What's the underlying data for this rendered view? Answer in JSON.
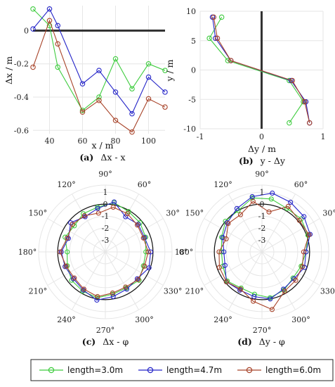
{
  "colors": {
    "green": "#3fcc3f",
    "blue": "#2525c8",
    "brown": "#a8442a",
    "grid": "#e6e6e6",
    "thick": "#333333"
  },
  "legend": {
    "entries": [
      {
        "label": "length=3.0m",
        "color": "#3fcc3f"
      },
      {
        "label": "length=4.7m",
        "color": "#2525c8"
      },
      {
        "label": "length=6.0m",
        "color": "#a8442a"
      }
    ]
  },
  "chart_data": [
    {
      "id": "a",
      "type": "line",
      "caption_letter": "(a)",
      "caption_text": "Δx - x",
      "xlabel": "x / m",
      "ylabel": "Δx / m",
      "xlim": [
        30,
        110
      ],
      "ylim": [
        -0.62,
        0.15
      ],
      "xticks": [
        40,
        60,
        80,
        100
      ],
      "yticks": [
        0,
        -0.2,
        -0.4,
        -0.6
      ],
      "ytick_labels": [
        "0",
        "-0.2",
        "-0.4",
        "-0.6"
      ],
      "x": [
        30,
        40,
        45,
        60,
        70,
        80,
        90,
        100,
        110
      ],
      "series": [
        {
          "name": "length=3.0m",
          "color": "#3fcc3f",
          "values": [
            0.13,
            0.03,
            -0.22,
            -0.48,
            -0.4,
            -0.17,
            -0.35,
            -0.2,
            -0.24
          ]
        },
        {
          "name": "length=4.7m",
          "color": "#2525c8",
          "values": [
            0.01,
            0.13,
            0.03,
            -0.32,
            -0.24,
            -0.37,
            -0.5,
            -0.28,
            -0.37
          ]
        },
        {
          "name": "length=6.0m",
          "color": "#a8442a",
          "values": [
            -0.22,
            0.06,
            -0.08,
            -0.49,
            -0.42,
            -0.54,
            -0.61,
            -0.41,
            -0.46
          ]
        }
      ]
    },
    {
      "id": "b",
      "type": "line",
      "caption_letter": "(b)",
      "caption_text": "y - Δy",
      "xlabel": "Δy / m",
      "ylabel": "y / m",
      "xlim": [
        -1,
        1
      ],
      "ylim": [
        -10,
        10
      ],
      "xticks": [
        -1,
        0,
        1
      ],
      "yticks": [
        10,
        5,
        0,
        -5,
        -10
      ],
      "y": [
        9,
        5.4,
        1.6,
        -1.8,
        -5.4,
        -9
      ],
      "series": [
        {
          "name": "length=3.0m",
          "color": "#3fcc3f",
          "values": [
            -0.65,
            -0.85,
            -0.55,
            0.45,
            0.68,
            0.45
          ]
        },
        {
          "name": "length=4.7m",
          "color": "#2525c8",
          "values": [
            -0.8,
            -0.75,
            -0.5,
            0.48,
            0.72,
            0.78
          ]
        },
        {
          "name": "length=6.0m",
          "color": "#a8442a",
          "values": [
            -0.78,
            -0.72,
            -0.5,
            0.5,
            0.7,
            0.78
          ]
        }
      ]
    },
    {
      "id": "c",
      "type": "polar",
      "caption_letter": "(c)",
      "caption_text": "Δx - φ",
      "rlim": [
        -4,
        1.6
      ],
      "rticks": [
        1,
        0,
        -1,
        -2,
        -3
      ],
      "angle_labels": [
        "0°",
        "30°",
        "60°",
        "90°",
        "120°",
        "150°",
        "180°",
        "210°",
        "240°",
        "270°",
        "300°",
        "330°"
      ],
      "reference_radius": 0,
      "theta": [
        0,
        20,
        40,
        60,
        80,
        100,
        120,
        140,
        160,
        180,
        200,
        220,
        240,
        260,
        280,
        300,
        320,
        340
      ],
      "series": [
        {
          "name": "length=3.0m",
          "color": "#3fcc3f",
          "values": [
            -0.6,
            -0.4,
            -0.2,
            -0.1,
            0.2,
            -0.2,
            -0.3,
            -0.6,
            -0.4,
            -0.8,
            -0.6,
            -0.3,
            -0.2,
            -0.1,
            -0.4,
            -0.5,
            -0.3,
            -0.6
          ]
        },
        {
          "name": "length=4.7m",
          "color": "#2525c8",
          "values": [
            -0.2,
            -0.5,
            -0.4,
            -0.6,
            0.25,
            -0.3,
            -0.6,
            -0.2,
            -0.7,
            -0.3,
            -0.4,
            -0.5,
            -0.3,
            0.1,
            -0.2,
            -0.4,
            -0.5,
            -0.1
          ]
        },
        {
          "name": "length=6.0m",
          "color": "#a8442a",
          "values": [
            -0.4,
            -0.6,
            -0.5,
            -0.3,
            -0.2,
            -0.7,
            -0.5,
            -0.4,
            -0.6,
            -0.2,
            -0.5,
            -0.6,
            -0.4,
            -0.2,
            -0.5,
            -0.6,
            -0.4,
            -0.5
          ]
        }
      ]
    },
    {
      "id": "d",
      "type": "polar",
      "caption_letter": "(d)",
      "caption_text": "Δy - φ",
      "rlim": [
        -4,
        1.6
      ],
      "rticks": [
        1,
        0,
        -1,
        -2,
        -3
      ],
      "angle_labels": [
        "0°",
        "30°",
        "60°",
        "90°",
        "120°",
        "150°",
        "180°",
        "210°",
        "240°",
        "270°",
        "300°",
        "330°"
      ],
      "reference_radius": 0,
      "theta": [
        0,
        20,
        40,
        60,
        80,
        100,
        120,
        140,
        160,
        180,
        200,
        220,
        240,
        260,
        280,
        300,
        320,
        340
      ],
      "series": [
        {
          "name": "length=3.0m",
          "color": "#3fcc3f",
          "values": [
            -0.3,
            0.1,
            0.3,
            0.2,
            0.5,
            0.6,
            0.0,
            0.0,
            -0.4,
            -0.6,
            -0.5,
            -0.2,
            -0.5,
            -0.4,
            -0.1,
            -0.3,
            -0.6,
            -0.5
          ]
        },
        {
          "name": "length=4.7m",
          "color": "#2525c8",
          "values": [
            -0.3,
            0.3,
            0.6,
            0.8,
            1.0,
            0.7,
            0.2,
            -0.2,
            -0.5,
            -0.8,
            -0.7,
            -0.1,
            -0.3,
            -0.2,
            0.0,
            -0.4,
            -0.5,
            -0.2
          ]
        },
        {
          "name": "length=6.0m",
          "color": "#a8442a",
          "values": [
            -0.5,
            0.2,
            0.1,
            0.4,
            -0.6,
            0.3,
            -0.4,
            -0.3,
            -0.8,
            -0.4,
            -0.2,
            -0.1,
            -0.4,
            0.2,
            0.9,
            -0.2,
            -0.3,
            -0.4
          ]
        }
      ]
    }
  ]
}
